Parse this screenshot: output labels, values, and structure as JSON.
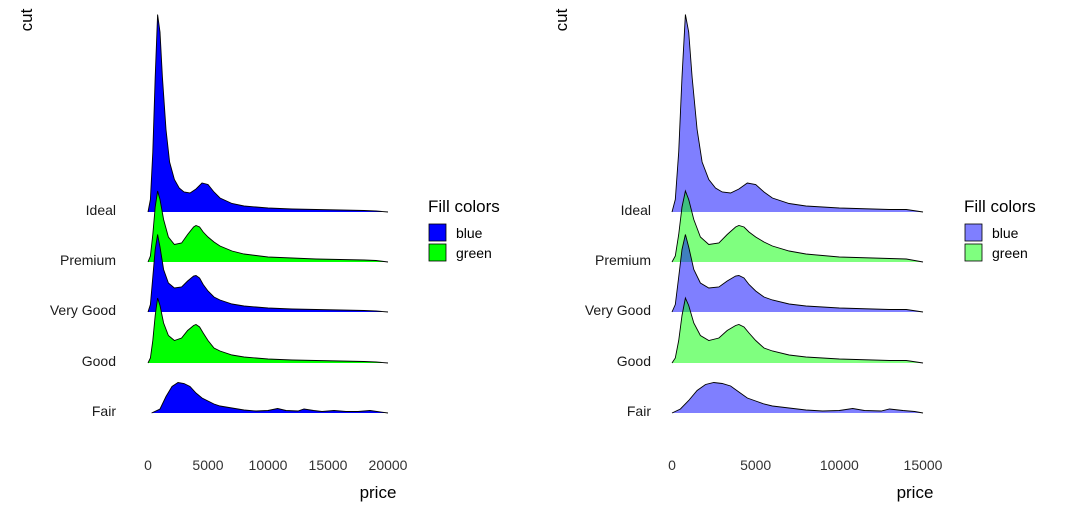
{
  "chart_data": [
    {
      "type": "area",
      "subtype": "ridgeline",
      "xlabel": "price",
      "ylabel": "cut",
      "xlim": [
        -1000,
        20500
      ],
      "xticks": [
        0,
        5000,
        10000,
        15000,
        20000
      ],
      "categories": [
        "Fair",
        "Good",
        "Very Good",
        "Premium",
        "Ideal"
      ],
      "fill_colors": [
        "#0000ff",
        "#00ff00",
        "#0000ff",
        "#00ff00",
        "#0000ff"
      ],
      "fill_alpha": 1,
      "legend": {
        "title": "Fill colors",
        "position": "right",
        "entries": [
          {
            "label": "blue",
            "color": "#0000ff"
          },
          {
            "label": "green",
            "color": "#00ff00"
          }
        ]
      },
      "series": [
        {
          "category": "Fair",
          "x": [
            300,
            1000,
            1500,
            2000,
            2500,
            3000,
            3500,
            4000,
            4500,
            5000,
            5500,
            6000,
            7000,
            8000,
            9000,
            10000,
            10800,
            11500,
            12500,
            13000,
            13800,
            14500,
            15500,
            16500,
            17500,
            18500,
            20000
          ],
          "y": [
            0.0,
            0.08,
            0.33,
            0.53,
            0.61,
            0.59,
            0.53,
            0.4,
            0.3,
            0.24,
            0.18,
            0.14,
            0.1,
            0.06,
            0.04,
            0.05,
            0.09,
            0.05,
            0.04,
            0.08,
            0.05,
            0.03,
            0.05,
            0.03,
            0.03,
            0.05,
            0.0
          ]
        },
        {
          "category": "Good",
          "x": [
            0,
            200,
            400,
            600,
            800,
            1000,
            1300,
            1700,
            2200,
            2800,
            3300,
            3800,
            4000,
            4300,
            4600,
            5000,
            5500,
            6000,
            7000,
            8000,
            9000,
            10000,
            12000,
            14000,
            16000,
            18000,
            19000,
            20000
          ],
          "y": [
            0.0,
            0.1,
            0.45,
            0.95,
            1.3,
            1.15,
            0.8,
            0.55,
            0.45,
            0.5,
            0.65,
            0.75,
            0.77,
            0.72,
            0.6,
            0.45,
            0.3,
            0.24,
            0.16,
            0.12,
            0.1,
            0.08,
            0.06,
            0.05,
            0.04,
            0.03,
            0.02,
            0.0
          ]
        },
        {
          "category": "Very Good",
          "x": [
            0,
            200,
            400,
            600,
            800,
            1000,
            1300,
            1700,
            2200,
            2800,
            3300,
            3800,
            4000,
            4300,
            4600,
            5000,
            5500,
            6000,
            7000,
            8000,
            9000,
            10000,
            12000,
            14000,
            16000,
            18000,
            19000,
            20000
          ],
          "y": [
            0.0,
            0.15,
            0.7,
            1.25,
            1.55,
            1.3,
            0.85,
            0.58,
            0.48,
            0.5,
            0.62,
            0.72,
            0.73,
            0.68,
            0.55,
            0.42,
            0.3,
            0.24,
            0.16,
            0.12,
            0.1,
            0.08,
            0.06,
            0.05,
            0.04,
            0.03,
            0.02,
            0.0
          ]
        },
        {
          "category": "Premium",
          "x": [
            0,
            200,
            400,
            600,
            800,
            1000,
            1300,
            1700,
            2200,
            2800,
            3300,
            3800,
            4000,
            4300,
            4600,
            5000,
            5500,
            6000,
            7000,
            8000,
            9000,
            10000,
            12000,
            14000,
            16000,
            18000,
            19000,
            20000
          ],
          "y": [
            0.0,
            0.12,
            0.55,
            1.1,
            1.42,
            1.25,
            0.85,
            0.5,
            0.35,
            0.38,
            0.55,
            0.7,
            0.73,
            0.7,
            0.6,
            0.5,
            0.4,
            0.32,
            0.22,
            0.16,
            0.13,
            0.1,
            0.08,
            0.06,
            0.05,
            0.04,
            0.03,
            0.0
          ]
        },
        {
          "category": "Ideal",
          "x": [
            0,
            200,
            400,
            600,
            800,
            1000,
            1200,
            1500,
            1800,
            2200,
            2600,
            3000,
            3500,
            4000,
            4500,
            5000,
            5500,
            6000,
            7000,
            8000,
            9000,
            10000,
            12000,
            14000,
            16000,
            18000,
            19000,
            20000
          ],
          "y": [
            0.0,
            0.25,
            1.2,
            2.7,
            3.95,
            3.6,
            2.7,
            1.65,
            1.0,
            0.65,
            0.48,
            0.4,
            0.38,
            0.46,
            0.58,
            0.55,
            0.4,
            0.28,
            0.17,
            0.12,
            0.1,
            0.08,
            0.06,
            0.05,
            0.04,
            0.03,
            0.02,
            0.0
          ]
        }
      ]
    },
    {
      "type": "area",
      "subtype": "ridgeline",
      "xlabel": "price",
      "ylabel": "cut",
      "xlim": [
        -200,
        15300
      ],
      "xticks": [
        0,
        5000,
        10000,
        15000
      ],
      "categories": [
        "Fair",
        "Good",
        "Very Good",
        "Premium",
        "Ideal"
      ],
      "fill_colors": [
        "#0000ff",
        "#00ff00",
        "#0000ff",
        "#00ff00",
        "#0000ff"
      ],
      "fill_alpha": 0.5,
      "legend": {
        "title": "Fill colors",
        "position": "right",
        "entries": [
          {
            "label": "blue",
            "color": "#0000ff"
          },
          {
            "label": "green",
            "color": "#00ff00"
          }
        ]
      },
      "series": [
        {
          "category": "Fair",
          "x": [
            0,
            500,
            1000,
            1500,
            2000,
            2500,
            3000,
            3500,
            4000,
            4500,
            5000,
            5500,
            6000,
            7000,
            8000,
            9000,
            10000,
            10800,
            11500,
            12500,
            13000,
            13800,
            14500,
            15000
          ],
          "y": [
            0.0,
            0.08,
            0.25,
            0.45,
            0.57,
            0.61,
            0.59,
            0.54,
            0.42,
            0.3,
            0.24,
            0.18,
            0.14,
            0.1,
            0.06,
            0.04,
            0.05,
            0.09,
            0.05,
            0.04,
            0.08,
            0.05,
            0.03,
            0.0
          ]
        },
        {
          "category": "Good",
          "x": [
            0,
            200,
            400,
            600,
            800,
            1000,
            1300,
            1700,
            2200,
            2800,
            3300,
            3800,
            4000,
            4300,
            4600,
            5000,
            5500,
            6000,
            7000,
            8000,
            9000,
            10000,
            11000,
            12000,
            13000,
            14000,
            15000
          ],
          "y": [
            0.0,
            0.1,
            0.45,
            0.95,
            1.3,
            1.15,
            0.8,
            0.55,
            0.45,
            0.5,
            0.65,
            0.75,
            0.77,
            0.72,
            0.6,
            0.45,
            0.3,
            0.24,
            0.16,
            0.12,
            0.1,
            0.08,
            0.07,
            0.06,
            0.05,
            0.05,
            0.0
          ]
        },
        {
          "category": "Very Good",
          "x": [
            0,
            200,
            400,
            600,
            800,
            1000,
            1300,
            1700,
            2200,
            2800,
            3300,
            3800,
            4000,
            4300,
            4600,
            5000,
            5500,
            6000,
            7000,
            8000,
            9000,
            10000,
            11000,
            12000,
            13000,
            14000,
            15000
          ],
          "y": [
            0.0,
            0.15,
            0.7,
            1.25,
            1.55,
            1.3,
            0.85,
            0.58,
            0.48,
            0.5,
            0.62,
            0.72,
            0.73,
            0.68,
            0.55,
            0.42,
            0.3,
            0.24,
            0.16,
            0.12,
            0.1,
            0.08,
            0.07,
            0.06,
            0.05,
            0.05,
            0.0
          ]
        },
        {
          "category": "Premium",
          "x": [
            0,
            200,
            400,
            600,
            800,
            1000,
            1300,
            1700,
            2200,
            2800,
            3300,
            3800,
            4000,
            4300,
            4600,
            5000,
            5500,
            6000,
            7000,
            8000,
            9000,
            10000,
            11000,
            12000,
            13000,
            14000,
            15000
          ],
          "y": [
            0.0,
            0.12,
            0.55,
            1.1,
            1.42,
            1.25,
            0.85,
            0.5,
            0.35,
            0.38,
            0.55,
            0.7,
            0.73,
            0.7,
            0.6,
            0.5,
            0.4,
            0.32,
            0.22,
            0.16,
            0.13,
            0.1,
            0.09,
            0.08,
            0.07,
            0.06,
            0.0
          ]
        },
        {
          "category": "Ideal",
          "x": [
            0,
            200,
            400,
            600,
            800,
            1000,
            1200,
            1500,
            1800,
            2200,
            2600,
            3000,
            3500,
            4000,
            4500,
            5000,
            5500,
            6000,
            7000,
            8000,
            9000,
            10000,
            11000,
            12000,
            13000,
            14000,
            15000
          ],
          "y": [
            0.0,
            0.25,
            1.2,
            2.7,
            3.95,
            3.6,
            2.7,
            1.65,
            1.0,
            0.65,
            0.48,
            0.4,
            0.38,
            0.46,
            0.58,
            0.55,
            0.4,
            0.28,
            0.17,
            0.12,
            0.1,
            0.08,
            0.07,
            0.06,
            0.05,
            0.05,
            0.0
          ]
        }
      ]
    }
  ]
}
